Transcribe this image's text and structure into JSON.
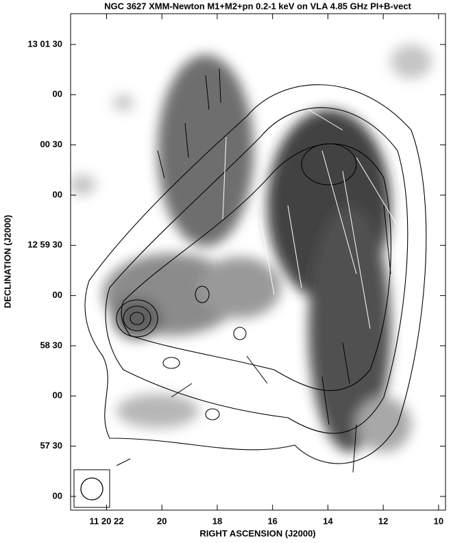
{
  "chart_data": {
    "type": "image",
    "title": "NGC 3627 XMM-Newton M1+M2+pn 0.2-1 keV on VLA 4.85 GHz PI+B-vect",
    "xlabel": "RIGHT ASCENSION (J2000)",
    "ylabel": "DECLINATION (J2000)",
    "xlim": [
      23.3,
      9.75
    ],
    "ylim": [
      -8.2,
      288.4
    ],
    "xticks": [
      {
        "value": 22,
        "label": "11 20 22"
      },
      20,
      18,
      16,
      14,
      12,
      10
    ],
    "yticks": [
      {
        "value": 270,
        "label": "13 01 30"
      },
      {
        "value": 240,
        "label": "00"
      },
      {
        "value": 210,
        "label": "00 30"
      },
      {
        "value": 180,
        "label": "00"
      },
      {
        "value": 150,
        "label": "12 59 30"
      },
      {
        "value": 120,
        "label": "00"
      },
      {
        "value": 90,
        "label": "58 30"
      },
      {
        "value": 60,
        "label": "00"
      },
      {
        "value": 30,
        "label": "57 30"
      },
      {
        "value": 0,
        "label": "00"
      }
    ]
  }
}
